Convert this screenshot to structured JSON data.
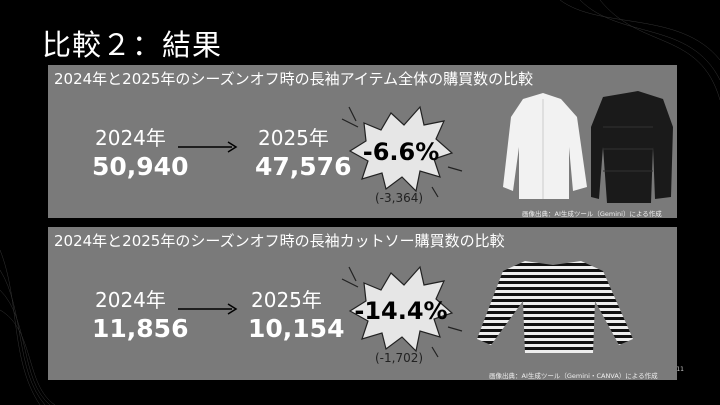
{
  "slide": {
    "title": "比較２：結果",
    "page_number": "11"
  },
  "panels": [
    {
      "title": "2024年と2025年のシーズンオフ時の長袖アイテム全体の購買数の比較",
      "year_from": "2024年",
      "value_from": "50,940",
      "year_to": "2025年",
      "value_to": "47,576",
      "change_percent": "-6.6%",
      "change_abs": "(-3,364)",
      "image_credit": "画像出典：AI生成ツール（Gemini）による作成"
    },
    {
      "title": "2024年と2025年のシーズンオフ時の長袖カットソー購買数の比較",
      "year_from": "2024年",
      "value_from": "11,856",
      "year_to": "2025年",
      "value_to": "10,154",
      "change_percent": "-14.4%",
      "change_abs": "(-1,702)",
      "image_credit": "画像出典：AI生成ツール（Gemini・CANVA）による作成"
    }
  ],
  "colors": {
    "background": "#000000",
    "panel": "#7a7a7a",
    "burst": "#e6e6e6"
  }
}
